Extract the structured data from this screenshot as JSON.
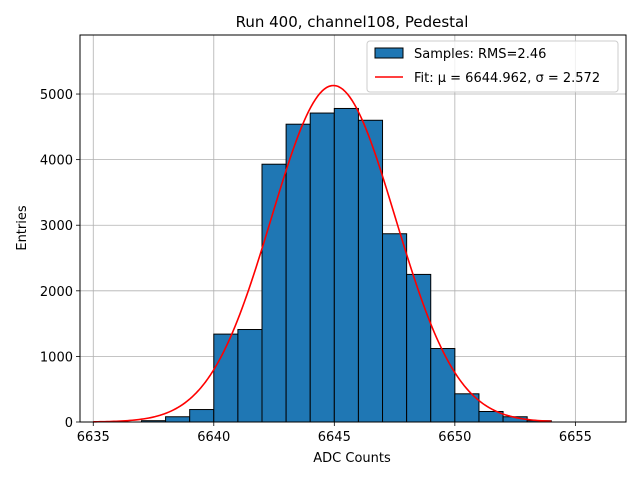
{
  "chart_data": {
    "type": "bar",
    "title": "Run 400, channel108, Pedestal",
    "xlabel": "ADC Counts",
    "ylabel": "Entries",
    "xlim": [
      6634.45,
      6657.1
    ],
    "ylim": [
      0,
      5900
    ],
    "grid": true,
    "legend_position": "top-right",
    "bar_color": "#1f77b4",
    "bar_edge_color": "#000000",
    "fit_color": "#ff0000",
    "xticks": [
      6635,
      6640,
      6645,
      6650,
      6655
    ],
    "yticks": [
      0,
      1000,
      2000,
      3000,
      4000,
      5000
    ],
    "bins": [
      {
        "left": 6637,
        "right": 6638,
        "value": 20
      },
      {
        "left": 6638,
        "right": 6639,
        "value": 80
      },
      {
        "left": 6639,
        "right": 6640,
        "value": 190
      },
      {
        "left": 6640,
        "right": 6641,
        "value": 1340
      },
      {
        "left": 6641,
        "right": 6642,
        "value": 1410
      },
      {
        "left": 6642,
        "right": 6643,
        "value": 3930
      },
      {
        "left": 6643,
        "right": 6644,
        "value": 4540
      },
      {
        "left": 6644,
        "right": 6645,
        "value": 4710
      },
      {
        "left": 6645,
        "right": 6646,
        "value": 4780
      },
      {
        "left": 6646,
        "right": 6647,
        "value": 4600
      },
      {
        "left": 6647,
        "right": 6648,
        "value": 2870
      },
      {
        "left": 6648,
        "right": 6649,
        "value": 2250
      },
      {
        "left": 6649,
        "right": 6650,
        "value": 1120
      },
      {
        "left": 6650,
        "right": 6651,
        "value": 430
      },
      {
        "left": 6651,
        "right": 6652,
        "value": 160
      },
      {
        "left": 6652,
        "right": 6653,
        "value": 80
      },
      {
        "left": 6653,
        "right": 6654,
        "value": 20
      }
    ],
    "fit": {
      "mu": 6644.962,
      "sigma": 2.572,
      "amplitude": 5130,
      "x_range": [
        6635,
        6654
      ]
    },
    "series": [
      {
        "name": "Samples: RMS=2.46",
        "kind": "histogram"
      },
      {
        "name": "Fit: μ = 6644.962, σ = 2.572",
        "kind": "line"
      }
    ]
  }
}
